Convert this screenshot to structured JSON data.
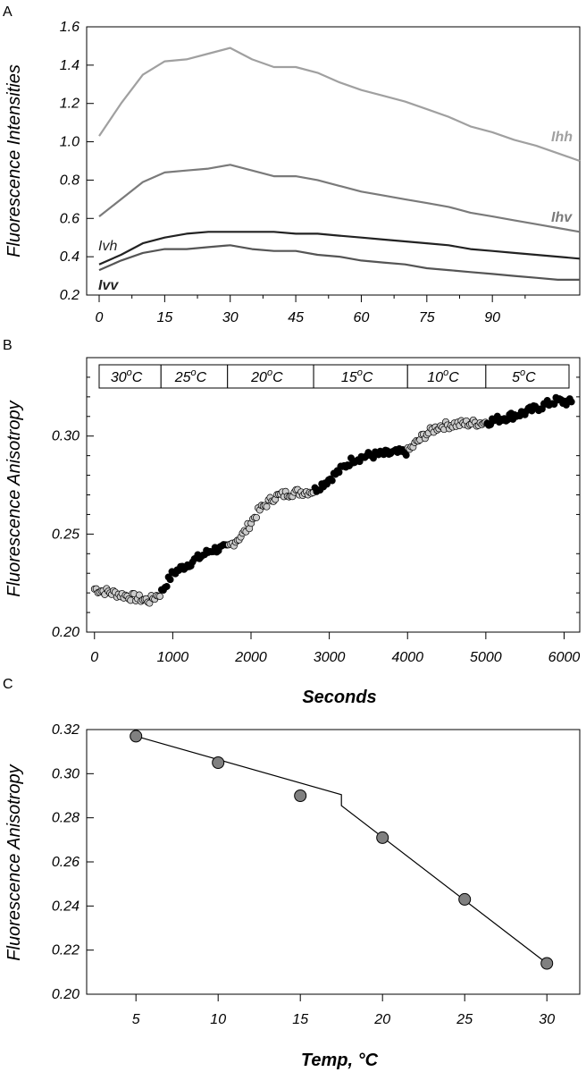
{
  "panels": {
    "a": "A",
    "b": "B",
    "c": "C"
  },
  "chart_data": [
    {
      "type": "line",
      "panel": "A",
      "ylabel": "Fluorescence Intensities",
      "xlabel": "",
      "xlim": [
        0,
        110
      ],
      "ylim": [
        0.2,
        1.6
      ],
      "yticks": [
        "0.2",
        "0.4",
        "0.6",
        "0.8",
        "1.0",
        "1.2",
        "1.4",
        "1.6"
      ],
      "xticks": [
        "0",
        "15",
        "30",
        "45",
        "60",
        "75",
        "90"
      ],
      "series": [
        {
          "name": "Ihh",
          "color": "#a0a0a0",
          "label_style": "bold",
          "x": [
            0,
            5,
            10,
            15,
            20,
            25,
            30,
            35,
            40,
            45,
            50,
            55,
            60,
            65,
            70,
            75,
            80,
            85,
            90,
            95,
            100,
            105,
            110
          ],
          "y": [
            1.03,
            1.2,
            1.35,
            1.42,
            1.43,
            1.46,
            1.49,
            1.43,
            1.39,
            1.39,
            1.36,
            1.31,
            1.27,
            1.24,
            1.21,
            1.17,
            1.13,
            1.08,
            1.05,
            1.01,
            0.98,
            0.94,
            0.9
          ]
        },
        {
          "name": "Ihv",
          "color": "#7a7a7a",
          "label_style": "bold",
          "x": [
            0,
            5,
            10,
            15,
            20,
            25,
            30,
            35,
            40,
            45,
            50,
            55,
            60,
            65,
            70,
            75,
            80,
            85,
            90,
            95,
            100,
            105,
            110
          ],
          "y": [
            0.61,
            0.7,
            0.79,
            0.84,
            0.85,
            0.86,
            0.88,
            0.85,
            0.82,
            0.82,
            0.8,
            0.77,
            0.74,
            0.72,
            0.7,
            0.68,
            0.66,
            0.63,
            0.61,
            0.59,
            0.57,
            0.55,
            0.53
          ]
        },
        {
          "name": "Ivh",
          "color": "#222222",
          "label_style": "normal",
          "x": [
            0,
            5,
            10,
            15,
            20,
            25,
            30,
            35,
            40,
            45,
            50,
            55,
            60,
            65,
            70,
            75,
            80,
            85,
            90,
            95,
            100,
            105,
            110
          ],
          "y": [
            0.36,
            0.41,
            0.47,
            0.5,
            0.52,
            0.53,
            0.53,
            0.53,
            0.53,
            0.52,
            0.52,
            0.51,
            0.5,
            0.49,
            0.48,
            0.47,
            0.46,
            0.44,
            0.43,
            0.42,
            0.41,
            0.4,
            0.39
          ]
        },
        {
          "name": "Ivv",
          "color": "#555555",
          "label_style": "bold",
          "x": [
            0,
            5,
            10,
            15,
            20,
            25,
            30,
            35,
            40,
            45,
            50,
            55,
            60,
            65,
            70,
            75,
            80,
            85,
            90,
            95,
            100,
            105,
            110
          ],
          "y": [
            0.33,
            0.38,
            0.42,
            0.44,
            0.44,
            0.45,
            0.46,
            0.44,
            0.43,
            0.43,
            0.41,
            0.4,
            0.38,
            0.37,
            0.36,
            0.34,
            0.33,
            0.32,
            0.31,
            0.3,
            0.29,
            0.28,
            0.28
          ]
        }
      ]
    },
    {
      "type": "scatter",
      "panel": "B",
      "xlabel": "Seconds",
      "ylabel": "Fluorescence Anisotropy",
      "xlim": [
        -100,
        6200
      ],
      "ylim": [
        0.2,
        0.34
      ],
      "xticks": [
        "0",
        "1000",
        "2000",
        "3000",
        "4000",
        "5000",
        "6000"
      ],
      "yticks": [
        "0.20",
        "0.25",
        "0.30"
      ],
      "temperature_segments": [
        {
          "label": "30",
          "unit": "C",
          "start": 0,
          "end": 850,
          "fill": "#cccccc"
        },
        {
          "label": "25",
          "unit": "C",
          "start": 850,
          "end": 1700,
          "fill": "#000000"
        },
        {
          "label": "20",
          "unit": "C",
          "start": 1700,
          "end": 2800,
          "fill": "#cccccc"
        },
        {
          "label": "15",
          "unit": "C",
          "start": 2800,
          "end": 4000,
          "fill": "#000000"
        },
        {
          "label": "10",
          "unit": "C",
          "start": 4000,
          "end": 5000,
          "fill": "#cccccc"
        },
        {
          "label": "5",
          "unit": "C",
          "start": 5000,
          "end": 6100,
          "fill": "#000000"
        }
      ],
      "series": [
        {
          "name": "",
          "x": [
            0,
            700,
            850,
            1000,
            1500,
            1700,
            1900,
            2100,
            2300,
            2500,
            2800,
            3000,
            3300,
            3500,
            4000,
            4200,
            4400,
            4600,
            5000,
            5500,
            5900,
            6100
          ],
          "y": [
            0.222,
            0.216,
            0.22,
            0.23,
            0.242,
            0.243,
            0.25,
            0.262,
            0.269,
            0.271,
            0.272,
            0.278,
            0.288,
            0.29,
            0.292,
            0.3,
            0.305,
            0.306,
            0.307,
            0.312,
            0.318,
            0.317
          ]
        }
      ]
    },
    {
      "type": "line",
      "panel": "C",
      "xlabel": "Temp, °C",
      "ylabel": "Fluorescence Anisotropy",
      "xlim": [
        2,
        32
      ],
      "ylim": [
        0.2,
        0.32
      ],
      "xticks": [
        "5",
        "10",
        "15",
        "20",
        "25",
        "30"
      ],
      "yticks": [
        "0.20",
        "0.22",
        "0.24",
        "0.26",
        "0.28",
        "0.30",
        "0.32"
      ],
      "series": [
        {
          "name": "",
          "x": [
            5,
            10,
            15,
            20,
            25,
            30
          ],
          "y": [
            0.317,
            0.305,
            0.29,
            0.271,
            0.243,
            0.214
          ]
        }
      ],
      "fit": {
        "x": [
          5,
          17.5,
          17.5,
          30
        ],
        "y": [
          0.317,
          0.2905,
          0.2855,
          0.214
        ]
      }
    }
  ]
}
